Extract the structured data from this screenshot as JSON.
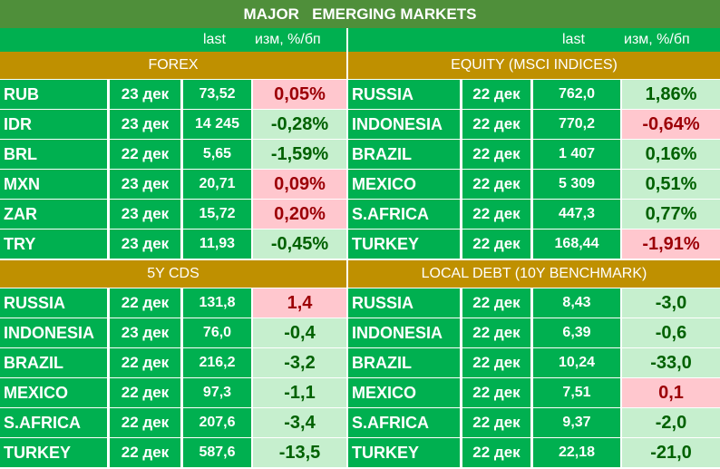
{
  "title": "MAJOR   EMERGING MARKETS",
  "col_headers": {
    "left_last": "last",
    "left_change": "изм, %/бп",
    "right_last": "last",
    "right_change": "изм, %/бп"
  },
  "colors": {
    "title_bg": "#4f8f3a",
    "row_bg": "#00b050",
    "section_bg": "#bf9000",
    "up_bg": "#ffc7ce",
    "up_text": "#9c0006",
    "down_bg": "#c6efce",
    "down_text": "#006100"
  },
  "sections": [
    {
      "name": "FOREX",
      "rows": [
        {
          "name": "RUB",
          "date": "23 дек",
          "last": "73,52",
          "change": "0,05%",
          "dir": "pos"
        },
        {
          "name": "IDR",
          "date": "23 дек",
          "last": "14 245",
          "change": "-0,28%",
          "dir": "neg"
        },
        {
          "name": "BRL",
          "date": "22 дек",
          "last": "5,65",
          "change": "-1,59%",
          "dir": "neg"
        },
        {
          "name": "MXN",
          "date": "23 дек",
          "last": "20,71",
          "change": "0,09%",
          "dir": "pos"
        },
        {
          "name": "ZAR",
          "date": "23 дек",
          "last": "15,72",
          "change": "0,20%",
          "dir": "pos"
        },
        {
          "name": "TRY",
          "date": "23 дек",
          "last": "11,93",
          "change": "-0,45%",
          "dir": "neg"
        }
      ]
    },
    {
      "name": "EQUITY (MSCI INDICES)",
      "rows": [
        {
          "name": "RUSSIA",
          "date": "22 дек",
          "last": "762,0",
          "change": "1,86%",
          "dir": "neg"
        },
        {
          "name": "INDONESIA",
          "date": "22 дек",
          "last": "770,2",
          "change": "-0,64%",
          "dir": "pos"
        },
        {
          "name": "BRAZIL",
          "date": "22 дек",
          "last": "1 407",
          "change": "0,16%",
          "dir": "neg"
        },
        {
          "name": "MEXICO",
          "date": "22 дек",
          "last": "5 309",
          "change": "0,51%",
          "dir": "neg"
        },
        {
          "name": "S.AFRICA",
          "date": "22 дек",
          "last": "447,3",
          "change": "0,77%",
          "dir": "neg"
        },
        {
          "name": "TURKEY",
          "date": "22 дек",
          "last": "168,44",
          "change": "-1,91%",
          "dir": "pos"
        }
      ]
    },
    {
      "name": "5Y CDS",
      "rows": [
        {
          "name": "RUSSIA",
          "date": "22 дек",
          "last": "131,8",
          "change": "1,4",
          "dir": "pos"
        },
        {
          "name": "INDONESIA",
          "date": "23 дек",
          "last": "76,0",
          "change": "-0,4",
          "dir": "neg"
        },
        {
          "name": "BRAZIL",
          "date": "22 дек",
          "last": "216,2",
          "change": "-3,2",
          "dir": "neg"
        },
        {
          "name": "MEXICO",
          "date": "22 дек",
          "last": "97,3",
          "change": "-1,1",
          "dir": "neg"
        },
        {
          "name": "S.AFRICA",
          "date": "22 дек",
          "last": "207,6",
          "change": "-3,4",
          "dir": "neg"
        },
        {
          "name": "TURKEY",
          "date": "22 дек",
          "last": "587,6",
          "change": "-13,5",
          "dir": "neg"
        }
      ]
    },
    {
      "name": "LOCAL DEBT (10Y BENCHMARK)",
      "rows": [
        {
          "name": "RUSSIA",
          "date": "22 дек",
          "last": "8,43",
          "change": "-3,0",
          "dir": "neg"
        },
        {
          "name": "INDONESIA",
          "date": "22 дек",
          "last": "6,39",
          "change": "-0,6",
          "dir": "neg"
        },
        {
          "name": "BRAZIL",
          "date": "22 дек",
          "last": "10,24",
          "change": "-33,0",
          "dir": "neg"
        },
        {
          "name": "MEXICO",
          "date": "22 дек",
          "last": "7,51",
          "change": "0,1",
          "dir": "pos"
        },
        {
          "name": "S.AFRICA",
          "date": "22 дек",
          "last": "9,37",
          "change": "-2,0",
          "dir": "neg"
        },
        {
          "name": "TURKEY",
          "date": "22 дек",
          "last": "22,18",
          "change": "-21,0",
          "dir": "neg"
        }
      ]
    }
  ]
}
